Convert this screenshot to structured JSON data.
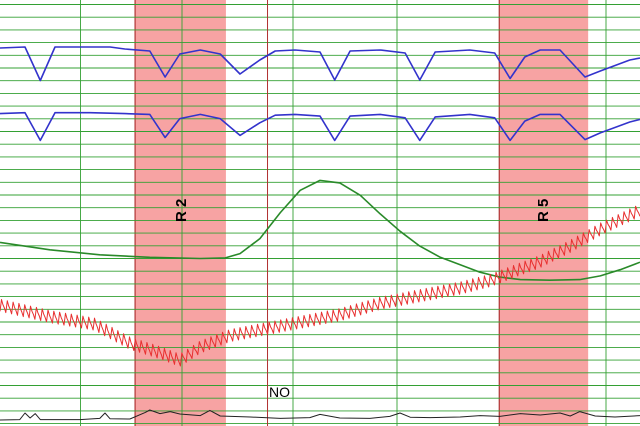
{
  "chart_data": {
    "type": "line",
    "title": "",
    "xlabel": "",
    "ylabel": "",
    "grid": true,
    "colors": {
      "background": "#ffffff",
      "gridline": "#33a033",
      "band": "#f7a3a3",
      "band_edge": "#a01a1a",
      "marker": "#b03030",
      "series_pneumo": "#3333cc",
      "series_gsr": "#2a8a2a",
      "series_cardio": "#e83030",
      "series_activity": "#222222"
    },
    "x_range": [
      0,
      100
    ],
    "bands": [
      {
        "label": "R 2",
        "start": 21.1,
        "end": 35.3
      },
      {
        "label": "R 5",
        "start": 78.0,
        "end": 91.9
      }
    ],
    "event_markers": [
      {
        "x": 41.8
      }
    ],
    "annotations": [
      {
        "text": "NO",
        "x": 44.3
      }
    ],
    "series": [
      {
        "channel": "pneumo-upper",
        "points": [
          [
            0,
            80
          ],
          [
            3.9,
            82
          ],
          [
            6.3,
            15
          ],
          [
            8.6,
            82
          ],
          [
            14.1,
            82
          ],
          [
            17.2,
            82
          ],
          [
            19.5,
            78
          ],
          [
            23.4,
            74
          ],
          [
            25.8,
            22
          ],
          [
            28.1,
            68
          ],
          [
            31.3,
            76
          ],
          [
            34.4,
            68
          ],
          [
            37.5,
            28
          ],
          [
            40.6,
            56
          ],
          [
            43.0,
            74
          ],
          [
            46.1,
            76
          ],
          [
            50.0,
            72
          ],
          [
            52.3,
            16
          ],
          [
            54.7,
            74
          ],
          [
            59.4,
            76
          ],
          [
            63.3,
            70
          ],
          [
            65.6,
            16
          ],
          [
            68.0,
            72
          ],
          [
            73.4,
            76
          ],
          [
            77.3,
            70
          ],
          [
            79.7,
            19
          ],
          [
            82.0,
            62
          ],
          [
            84.4,
            76
          ],
          [
            87.5,
            76
          ],
          [
            91.4,
            22
          ],
          [
            93.8,
            34
          ],
          [
            98.4,
            56
          ],
          [
            100,
            60
          ]
        ]
      },
      {
        "channel": "pneumo-lower",
        "points": [
          [
            0,
            82
          ],
          [
            3.9,
            84
          ],
          [
            6.3,
            18
          ],
          [
            8.6,
            84
          ],
          [
            14.1,
            84
          ],
          [
            19.5,
            82
          ],
          [
            23.4,
            80
          ],
          [
            25.8,
            25
          ],
          [
            28.1,
            70
          ],
          [
            31.3,
            80
          ],
          [
            34.4,
            70
          ],
          [
            37.5,
            30
          ],
          [
            40.6,
            60
          ],
          [
            43.0,
            78
          ],
          [
            46.1,
            80
          ],
          [
            50.0,
            76
          ],
          [
            52.3,
            18
          ],
          [
            54.7,
            76
          ],
          [
            59.4,
            80
          ],
          [
            63.3,
            72
          ],
          [
            65.6,
            18
          ],
          [
            68.0,
            74
          ],
          [
            73.4,
            80
          ],
          [
            77.3,
            72
          ],
          [
            79.7,
            18
          ],
          [
            82.0,
            64
          ],
          [
            84.4,
            80
          ],
          [
            87.5,
            80
          ],
          [
            91.4,
            20
          ],
          [
            93.8,
            36
          ],
          [
            98.4,
            62
          ],
          [
            100,
            68
          ]
        ]
      },
      {
        "channel": "gsr",
        "points": [
          [
            0,
            40
          ],
          [
            7.8,
            34
          ],
          [
            15.6,
            30
          ],
          [
            23.4,
            28
          ],
          [
            31.3,
            27
          ],
          [
            35.2,
            27.5
          ],
          [
            37.5,
            31
          ],
          [
            40.6,
            43
          ],
          [
            43.8,
            64
          ],
          [
            46.9,
            82
          ],
          [
            50.0,
            90
          ],
          [
            53.1,
            88
          ],
          [
            56.3,
            78
          ],
          [
            59.4,
            63
          ],
          [
            62.5,
            49
          ],
          [
            65.6,
            37
          ],
          [
            68.8,
            28
          ],
          [
            71.9,
            22
          ],
          [
            75.0,
            16
          ],
          [
            78.1,
            12
          ],
          [
            81.3,
            10
          ],
          [
            85.9,
            9.5
          ],
          [
            90.6,
            10
          ],
          [
            93.8,
            13
          ],
          [
            96.9,
            18
          ],
          [
            100,
            24
          ]
        ]
      },
      {
        "channel": "cardio",
        "cycles": 110,
        "amplitude": 3.2,
        "baseline": [
          [
            0,
            42
          ],
          [
            7.8,
            36
          ],
          [
            14.8,
            32
          ],
          [
            20.3,
            22
          ],
          [
            25.0,
            17
          ],
          [
            28.1,
            13
          ],
          [
            31.3,
            20
          ],
          [
            35.9,
            26
          ],
          [
            40.6,
            29
          ],
          [
            46.9,
            33
          ],
          [
            53.1,
            37
          ],
          [
            59.4,
            43
          ],
          [
            65.6,
            47
          ],
          [
            71.9,
            51
          ],
          [
            76.6,
            55
          ],
          [
            79.7,
            59
          ],
          [
            84.4,
            65
          ],
          [
            89.1,
            73
          ],
          [
            93.8,
            82
          ],
          [
            100,
            92
          ]
        ]
      },
      {
        "channel": "activity",
        "points": [
          [
            0,
            20
          ],
          [
            3.1,
            22
          ],
          [
            3.9,
            55
          ],
          [
            4.7,
            30
          ],
          [
            5.5,
            52
          ],
          [
            6.3,
            22
          ],
          [
            12.5,
            22
          ],
          [
            15.6,
            28
          ],
          [
            16.4,
            55
          ],
          [
            17.2,
            26
          ],
          [
            20.3,
            25
          ],
          [
            22.7,
            58
          ],
          [
            23.4,
            70
          ],
          [
            25.0,
            52
          ],
          [
            26.6,
            62
          ],
          [
            28.1,
            50
          ],
          [
            31.3,
            42
          ],
          [
            32.8,
            68
          ],
          [
            34.4,
            40
          ],
          [
            39.1,
            35
          ],
          [
            43.8,
            28
          ],
          [
            48.4,
            32
          ],
          [
            50.0,
            48
          ],
          [
            53.1,
            30
          ],
          [
            57.8,
            28
          ],
          [
            60.9,
            38
          ],
          [
            62.5,
            55
          ],
          [
            64.1,
            34
          ],
          [
            67.2,
            32
          ],
          [
            71.9,
            35
          ],
          [
            75.0,
            42
          ],
          [
            78.1,
            38
          ],
          [
            81.3,
            52
          ],
          [
            84.4,
            45
          ],
          [
            87.5,
            55
          ],
          [
            89.1,
            40
          ],
          [
            90.6,
            62
          ],
          [
            93.0,
            40
          ],
          [
            96.1,
            35
          ],
          [
            100,
            42
          ]
        ]
      }
    ]
  }
}
